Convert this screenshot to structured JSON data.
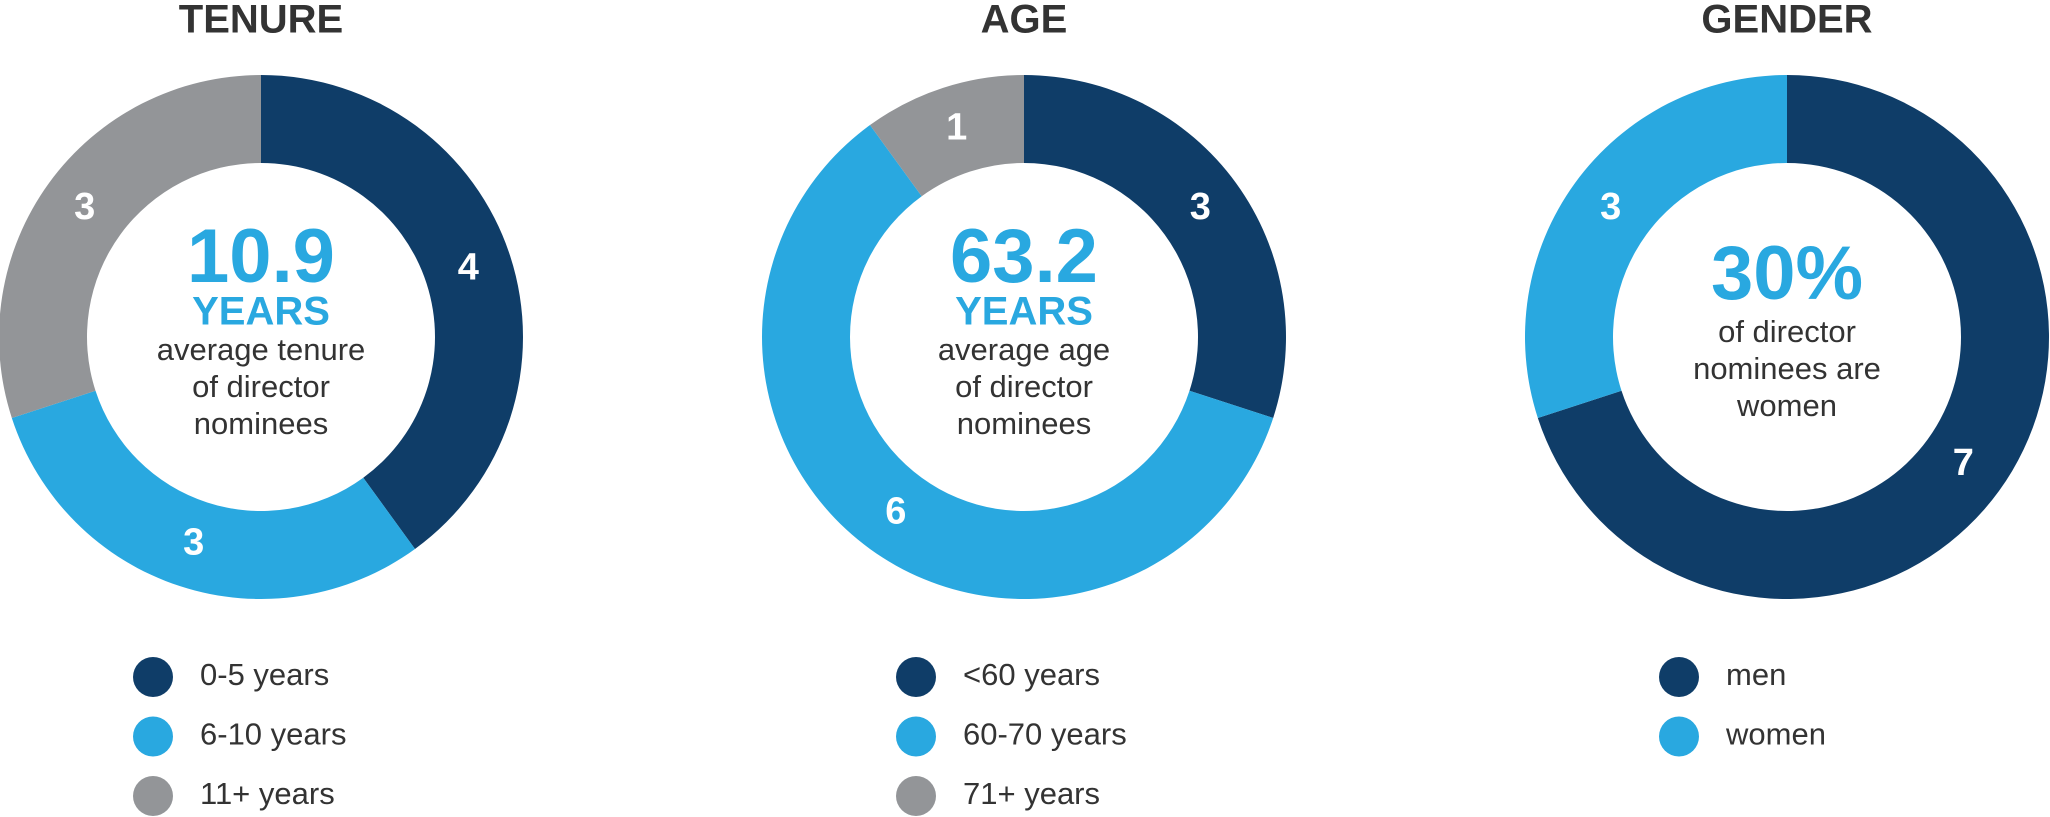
{
  "chart_data": [
    {
      "type": "donut",
      "title": "TENURE",
      "center_value": "10.9",
      "center_unit": "YEARS",
      "center_text": [
        "average tenure",
        "of director",
        "nominees"
      ],
      "categories": [
        "0-5 years",
        "6-10 years",
        "11+ years"
      ],
      "values": [
        4,
        3,
        3
      ],
      "colors": [
        "#0f3d68",
        "#29a8e0",
        "#939598"
      ]
    },
    {
      "type": "donut",
      "title": "AGE",
      "center_value": "63.2",
      "center_unit": "YEARS",
      "center_text": [
        "average age",
        "of director",
        "nominees"
      ],
      "categories": [
        "<60 years",
        "60-70 years",
        "71+ years"
      ],
      "values": [
        3,
        6,
        1
      ],
      "colors": [
        "#0f3d68",
        "#29a8e0",
        "#939598"
      ]
    },
    {
      "type": "donut",
      "title": "GENDER",
      "center_value": "30%",
      "center_text": [
        "of director",
        "nominees are",
        "women"
      ],
      "categories": [
        "men",
        "women"
      ],
      "values": [
        7,
        3
      ],
      "colors": [
        "#0f3d68",
        "#29a8e0"
      ]
    }
  ]
}
